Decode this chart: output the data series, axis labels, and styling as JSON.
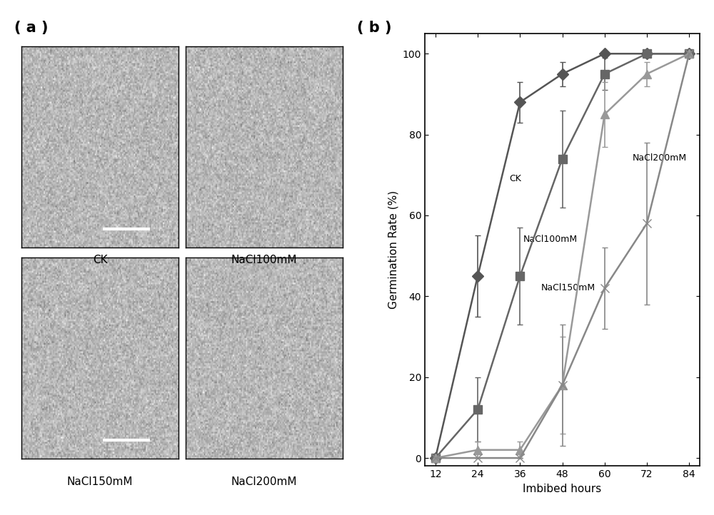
{
  "x": [
    12,
    24,
    36,
    48,
    60,
    72,
    84
  ],
  "series": [
    {
      "label": "CK",
      "y": [
        0,
        45,
        88,
        95,
        100,
        100,
        101
      ],
      "yerr": [
        0,
        10,
        5,
        3,
        0,
        0,
        0
      ],
      "color": "#555555",
      "marker": "D",
      "markersize": 8,
      "annotation": "CK",
      "ann_x": 33,
      "ann_y": 68
    },
    {
      "label": "NaCl100mM",
      "y": [
        0,
        12,
        45,
        74,
        95,
        100,
        101
      ],
      "yerr": [
        0,
        8,
        12,
        12,
        4,
        0,
        0
      ],
      "color": "#666666",
      "marker": "s",
      "markersize": 8,
      "annotation": "NaCl100mM",
      "ann_x": 37,
      "ann_y": 53
    },
    {
      "label": "NaCl150mM",
      "y": [
        0,
        2,
        2,
        18,
        85,
        95,
        101
      ],
      "yerr": [
        0,
        2,
        2,
        12,
        8,
        3,
        0
      ],
      "color": "#999999",
      "marker": "^",
      "markersize": 8,
      "annotation": "NaCl150mM",
      "ann_x": 42,
      "ann_y": 41
    },
    {
      "label": "NaCl200mM",
      "y": [
        0,
        0,
        0,
        18,
        42,
        58,
        100
      ],
      "yerr": [
        0,
        0,
        0,
        15,
        10,
        20,
        0
      ],
      "color": "#888888",
      "marker": "x",
      "markersize": 9,
      "annotation": "NaCl200mM",
      "ann_x": 68,
      "ann_y": 73
    }
  ],
  "xlabel": "Imbibed hours",
  "ylabel": "Germination Rate (%)",
  "xlim": [
    9,
    87
  ],
  "ylim": [
    -2,
    105
  ],
  "xticks": [
    12,
    24,
    36,
    48,
    60,
    72,
    84
  ],
  "yticks": [
    0,
    20,
    40,
    60,
    80,
    100
  ],
  "panel_a_label": "( a )",
  "panel_b_label": "( b )",
  "background_color": "#ffffff",
  "img_bg_color": 0.72,
  "img_labels": [
    "CK",
    "NaCl100mM",
    "NaCl150mM",
    "NaCl200mM"
  ],
  "scale_bar_panels": [
    0,
    2
  ]
}
